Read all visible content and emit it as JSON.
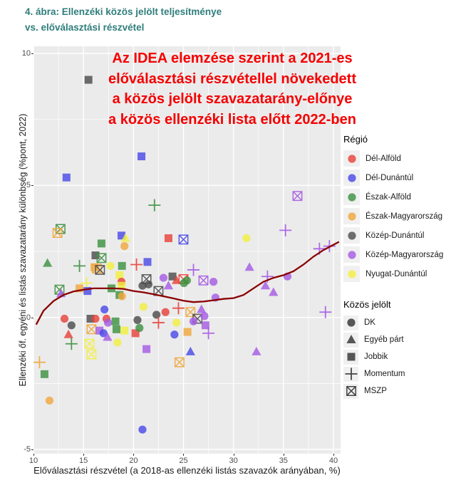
{
  "header": {
    "title_line1": "4. ábra: Ellenzéki közös jelölt teljesítménye",
    "title_line2": "vs. előválasztási részvétel",
    "title_color": "#2E7D7B"
  },
  "annotation": {
    "color": "#F50000",
    "lines": [
      "Az IDEA elemzése szerint a 2021-es",
      "előválasztási részvétellel növekedett",
      "a közös jelölt szavazatarány-előnye",
      "a közös ellenzéki lista előtt 2022-ben"
    ]
  },
  "chart_data": {
    "type": "scatter",
    "title": "",
    "xlabel": "Előválasztási részvétel (a 2018-as ellenzéki listás szavazók arányában, %)",
    "ylabel": "Ellenzéki őf. egyéni és listás szavazatarány különbség (%pont, 2022)",
    "xlim": [
      10,
      40.7
    ],
    "ylim": [
      -5.2,
      10.3
    ],
    "xticks": [
      10,
      15,
      20,
      25,
      30,
      35,
      40
    ],
    "yticks": [
      -5,
      0,
      5,
      10
    ],
    "xticks_minor": [
      12.5,
      17.5,
      22.5,
      27.5,
      32.5,
      37.5
    ],
    "yticks_minor": [
      -2.5,
      2.5,
      7.5
    ],
    "grid": "on",
    "panel_bg": "#EBEBEB",
    "grid_color": "#FFFFFF",
    "legend_position": "right",
    "legend_region": {
      "title": "Régió",
      "items": [
        {
          "label": "Dél-Alföld",
          "color": "#E8423A"
        },
        {
          "label": "Dél-Dunántúl",
          "color": "#4B4BE8"
        },
        {
          "label": "Észak-Alföld",
          "color": "#3E9142"
        },
        {
          "label": "Észak-Magyarország",
          "color": "#F0A73E"
        },
        {
          "label": "Közép-Dunántúl",
          "color": "#4D4D4D"
        },
        {
          "label": "Közép-Magyarország",
          "color": "#A55CE3"
        },
        {
          "label": "Nyugat-Dunántúl",
          "color": "#F2EF41"
        }
      ]
    },
    "legend_shape": {
      "title": "Közös jelölt",
      "glyph_color": "#333333",
      "items": [
        {
          "label": "DK",
          "shape": "circle"
        },
        {
          "label": "Egyéb párt",
          "shape": "triangle"
        },
        {
          "label": "Jobbik",
          "shape": "square"
        },
        {
          "label": "Momentum",
          "shape": "plus"
        },
        {
          "label": "MSZP",
          "shape": "square-x"
        }
      ]
    },
    "trend": {
      "color": "#8B0000",
      "points": [
        [
          10.3,
          -0.25
        ],
        [
          11,
          0.25
        ],
        [
          12,
          0.62
        ],
        [
          13,
          0.85
        ],
        [
          14,
          0.98
        ],
        [
          15,
          1.05
        ],
        [
          16,
          1.1
        ],
        [
          17,
          1.1
        ],
        [
          18,
          1.1
        ],
        [
          19,
          1.08
        ],
        [
          20,
          1.0
        ],
        [
          21,
          0.95
        ],
        [
          22,
          0.88
        ],
        [
          23,
          0.8
        ],
        [
          24,
          0.72
        ],
        [
          25,
          0.63
        ],
        [
          26,
          0.58
        ],
        [
          27,
          0.6
        ],
        [
          28,
          0.65
        ],
        [
          29,
          0.7
        ],
        [
          30,
          0.73
        ],
        [
          31,
          0.85
        ],
        [
          32,
          1.1
        ],
        [
          33,
          1.35
        ],
        [
          34,
          1.5
        ],
        [
          35,
          1.6
        ],
        [
          36,
          1.75
        ],
        [
          37,
          2.0
        ],
        [
          38,
          2.3
        ],
        [
          39,
          2.55
        ],
        [
          40,
          2.75
        ],
        [
          40.5,
          2.85
        ]
      ]
    },
    "points": [
      {
        "x": 15.5,
        "y": 9.0,
        "region": "Közép-Dunántúl",
        "party": "Jobbik"
      },
      {
        "x": 20.8,
        "y": 6.1,
        "region": "Dél-Dunántúl",
        "party": "Jobbik"
      },
      {
        "x": 13.3,
        "y": 5.3,
        "region": "Dél-Dunántúl",
        "party": "Jobbik"
      },
      {
        "x": 36.4,
        "y": 4.6,
        "region": "Közép-Magyarország",
        "party": "MSZP"
      },
      {
        "x": 22.1,
        "y": 4.25,
        "region": "Észak-Alföld",
        "party": "Momentum"
      },
      {
        "x": 35.2,
        "y": 3.3,
        "region": "Közép-Magyarország",
        "party": "Momentum"
      },
      {
        "x": 12.7,
        "y": 3.35,
        "region": "Észak-Alföld",
        "party": "MSZP"
      },
      {
        "x": 12.4,
        "y": 3.2,
        "region": "Észak-Magyarország",
        "party": "MSZP"
      },
      {
        "x": 18.8,
        "y": 3.1,
        "region": "Dél-Dunántúl",
        "party": "Jobbik"
      },
      {
        "x": 19.2,
        "y": 3.0,
        "region": "Nyugat-Dunántúl",
        "party": "Egyéb párt"
      },
      {
        "x": 31.3,
        "y": 3.0,
        "region": "Nyugat-Dunántúl",
        "party": "DK"
      },
      {
        "x": 23.5,
        "y": 3.0,
        "region": "Dél-Alföld",
        "party": "Jobbik"
      },
      {
        "x": 25.0,
        "y": 2.95,
        "region": "Dél-Dunántúl",
        "party": "MSZP"
      },
      {
        "x": 39.6,
        "y": 2.7,
        "region": "Közép-Magyarország",
        "party": "Momentum"
      },
      {
        "x": 38.6,
        "y": 2.6,
        "region": "Közép-Magyarország",
        "party": "Momentum"
      },
      {
        "x": 16.8,
        "y": 2.8,
        "region": "Észak-Alföld",
        "party": "Jobbik"
      },
      {
        "x": 19.1,
        "y": 2.7,
        "region": "Észak-Magyarország",
        "party": "DK"
      },
      {
        "x": 16.2,
        "y": 2.35,
        "region": "Közép-Dunántúl",
        "party": "Jobbik"
      },
      {
        "x": 16.8,
        "y": 2.25,
        "region": "Észak-Alföld",
        "party": "MSZP"
      },
      {
        "x": 11.4,
        "y": 2.05,
        "region": "Észak-Alföld",
        "party": "Egyéb párt"
      },
      {
        "x": 14.6,
        "y": 1.95,
        "region": "Észak-Alföld",
        "party": "Momentum"
      },
      {
        "x": 16.1,
        "y": 1.9,
        "region": "Észak-Magyarország",
        "party": "Jobbik"
      },
      {
        "x": 16.35,
        "y": 1.85,
        "region": "Észak-Magyarország",
        "party": "MSZP"
      },
      {
        "x": 16.65,
        "y": 1.8,
        "region": "Közép-Dunántúl",
        "party": "MSZP"
      },
      {
        "x": 17.7,
        "y": 1.95,
        "region": "Nyugat-Dunántúl",
        "party": "DK"
      },
      {
        "x": 18.85,
        "y": 1.95,
        "region": "Észak-Alföld",
        "party": "Jobbik"
      },
      {
        "x": 20.3,
        "y": 2.0,
        "region": "Dél-Alföld",
        "party": "Momentum"
      },
      {
        "x": 18.6,
        "y": 1.6,
        "region": "Nyugat-Dunántúl",
        "party": "Jobbik"
      },
      {
        "x": 18.8,
        "y": 1.35,
        "region": "Dél-Alföld",
        "party": "DK"
      },
      {
        "x": 21.4,
        "y": 2.1,
        "region": "Dél-Dunántúl",
        "party": "Jobbik"
      },
      {
        "x": 31.6,
        "y": 1.9,
        "region": "Közép-Magyarország",
        "party": "Egyéb párt"
      },
      {
        "x": 33.4,
        "y": 1.55,
        "region": "Közép-Magyarország",
        "party": "Momentum"
      },
      {
        "x": 35.4,
        "y": 1.55,
        "region": "Közép-Magyarország",
        "party": "DK"
      },
      {
        "x": 26.0,
        "y": 1.8,
        "region": "Közép-Magyarország",
        "party": "Momentum"
      },
      {
        "x": 21.3,
        "y": 1.45,
        "region": "Közép-Dunántúl",
        "party": "MSZP"
      },
      {
        "x": 21.5,
        "y": 1.25,
        "region": "Közép-Dunántúl",
        "party": "DK"
      },
      {
        "x": 20.9,
        "y": 1.2,
        "region": "Közép-Dunántúl",
        "party": "DK"
      },
      {
        "x": 23.0,
        "y": 1.5,
        "region": "Közép-Magyarország",
        "party": "DK"
      },
      {
        "x": 23.9,
        "y": 1.55,
        "region": "Közép-Dunántúl",
        "party": "Jobbik"
      },
      {
        "x": 23.5,
        "y": 1.2,
        "region": "Közép-Magyarország",
        "party": "Egyéb párt"
      },
      {
        "x": 24.3,
        "y": 1.4,
        "region": "Dél-Alföld",
        "party": "Egyéb párt"
      },
      {
        "x": 25.0,
        "y": 1.45,
        "region": "Dél-Alföld",
        "party": "MSZP"
      },
      {
        "x": 25.05,
        "y": 1.3,
        "region": "Észak-Alföld",
        "party": "DK"
      },
      {
        "x": 25.35,
        "y": 1.4,
        "region": "Észak-Alföld",
        "party": "DK"
      },
      {
        "x": 22.5,
        "y": 1.0,
        "region": "Közép-Dunántúl",
        "party": "MSZP"
      },
      {
        "x": 27.0,
        "y": 1.4,
        "region": "Közép-Magyarország",
        "party": "MSZP"
      },
      {
        "x": 28.0,
        "y": 1.35,
        "region": "Közép-Magyarország",
        "party": "DK"
      },
      {
        "x": 33.2,
        "y": 1.2,
        "region": "Közép-Magyarország",
        "party": "Egyéb párt"
      },
      {
        "x": 34.0,
        "y": 0.95,
        "region": "Közép-Magyarország",
        "party": "Egyéb párt"
      },
      {
        "x": 12.6,
        "y": 1.05,
        "region": "Észak-Alföld",
        "party": "MSZP"
      },
      {
        "x": 12.75,
        "y": 0.9,
        "region": "Közép-Magyarország",
        "party": "Egyéb párt"
      },
      {
        "x": 14.6,
        "y": 1.1,
        "region": "Észak-Magyarország",
        "party": "Jobbik"
      },
      {
        "x": 15.3,
        "y": 1.3,
        "region": "Nyugat-Dunántúl",
        "party": "Momentum"
      },
      {
        "x": 15.4,
        "y": 1.0,
        "region": "Dél-Dunántúl",
        "party": "Jobbik"
      },
      {
        "x": 17.8,
        "y": 1.1,
        "region": "Észak-Alföld",
        "party": "Jobbik"
      },
      {
        "x": 18.8,
        "y": 1.2,
        "region": "Nyugat-Dunántúl",
        "party": "Jobbik"
      },
      {
        "x": 18.6,
        "y": 0.85,
        "region": "Észak-Alföld",
        "party": "Jobbik"
      },
      {
        "x": 18.85,
        "y": 0.8,
        "region": "Észak-Magyarország",
        "party": "DK"
      },
      {
        "x": 13.1,
        "y": -0.05,
        "region": "Dél-Alföld",
        "party": "DK"
      },
      {
        "x": 13.8,
        "y": -0.3,
        "region": "Közép-Dunántúl",
        "party": "DK"
      },
      {
        "x": 17.1,
        "y": 0.3,
        "region": "Dél-Dunántúl",
        "party": "DK"
      },
      {
        "x": 15.7,
        "y": -0.05,
        "region": "Közép-Dunántúl",
        "party": "Jobbik"
      },
      {
        "x": 16.2,
        "y": -0.05,
        "region": "Dél-Alföld",
        "party": "DK"
      },
      {
        "x": 17.3,
        "y": -0.05,
        "region": "Dél-Alföld",
        "party": "DK"
      },
      {
        "x": 17.45,
        "y": -0.2,
        "region": "Közép-Magyarország",
        "party": "DK"
      },
      {
        "x": 15.8,
        "y": -0.45,
        "region": "Észak-Magyarország",
        "party": "MSZP"
      },
      {
        "x": 18.2,
        "y": -0.15,
        "region": "Észak-Alföld",
        "party": "Jobbik"
      },
      {
        "x": 18.3,
        "y": -0.45,
        "region": "Észak-Alföld",
        "party": "Jobbik"
      },
      {
        "x": 16.6,
        "y": -0.5,
        "region": "Közép-Magyarország",
        "party": "Jobbik"
      },
      {
        "x": 17.0,
        "y": -0.6,
        "region": "Dél-Dunántúl",
        "party": "DK"
      },
      {
        "x": 19.1,
        "y": -0.5,
        "region": "Nyugat-Dunántúl",
        "party": "Jobbik"
      },
      {
        "x": 20.4,
        "y": -0.1,
        "region": "Közép-Dunántúl",
        "party": "DK"
      },
      {
        "x": 13.5,
        "y": -0.65,
        "region": "Dél-Alföld",
        "party": "Egyéb párt"
      },
      {
        "x": 17.4,
        "y": -0.75,
        "region": "Közép-Magyarország",
        "party": "Egyéb párt"
      },
      {
        "x": 13.8,
        "y": -1.0,
        "region": "Észak-Alföld",
        "party": "Momentum"
      },
      {
        "x": 18.4,
        "y": -0.95,
        "region": "Nyugat-Dunántúl",
        "party": "DK"
      },
      {
        "x": 20.2,
        "y": -0.6,
        "region": "Dél-Alföld",
        "party": "Jobbik"
      },
      {
        "x": 15.6,
        "y": -1.0,
        "region": "Nyugat-Dunántúl",
        "party": "MSZP"
      },
      {
        "x": 15.8,
        "y": -1.4,
        "region": "Nyugat-Dunántúl",
        "party": "MSZP"
      },
      {
        "x": 10.6,
        "y": -1.7,
        "region": "Észak-Magyarország",
        "party": "Momentum"
      },
      {
        "x": 11.1,
        "y": -2.15,
        "region": "Észak-Alföld",
        "party": "Jobbik"
      },
      {
        "x": 28.2,
        "y": 0.75,
        "region": "Közép-Magyarország",
        "party": "DK"
      },
      {
        "x": 21.0,
        "y": 0.4,
        "region": "Nyugat-Dunántúl",
        "party": "DK"
      },
      {
        "x": 24.5,
        "y": 0.35,
        "region": "Dél-Alföld",
        "party": "Momentum"
      },
      {
        "x": 22.3,
        "y": 0.1,
        "region": "Közép-Dunántúl",
        "party": "DK"
      },
      {
        "x": 23.2,
        "y": 0.2,
        "region": "Dél-Alföld",
        "party": "DK"
      },
      {
        "x": 22.5,
        "y": -0.2,
        "region": "Dél-Alföld",
        "party": "Momentum"
      },
      {
        "x": 20.6,
        "y": -0.4,
        "region": "Észak-Alföld",
        "party": "DK"
      },
      {
        "x": 25.7,
        "y": 0.2,
        "region": "Észak-Magyarország",
        "party": "MSZP"
      },
      {
        "x": 26.4,
        "y": -0.05,
        "region": "Közép-Dunántúl",
        "party": "MSZP"
      },
      {
        "x": 26.8,
        "y": 0.3,
        "region": "Közép-Magyarország",
        "party": "Egyéb párt"
      },
      {
        "x": 27.1,
        "y": 0.05,
        "region": "Közép-Magyarország",
        "party": "DK"
      },
      {
        "x": 26.0,
        "y": -0.15,
        "region": "Közép-Magyarország",
        "party": "DK"
      },
      {
        "x": 24.3,
        "y": -0.2,
        "region": "Nyugat-Dunántúl",
        "party": "DK"
      },
      {
        "x": 27.2,
        "y": -0.3,
        "region": "Közép-Magyarország",
        "party": "Jobbik"
      },
      {
        "x": 24.1,
        "y": -0.65,
        "region": "Dél-Dunántúl",
        "party": "DK"
      },
      {
        "x": 25.4,
        "y": -0.55,
        "region": "Észak-Magyarország",
        "party": "Jobbik"
      },
      {
        "x": 27.5,
        "y": -0.6,
        "region": "Közép-Magyarország",
        "party": "Momentum"
      },
      {
        "x": 21.3,
        "y": -1.2,
        "region": "Közép-Magyarország",
        "party": "Jobbik"
      },
      {
        "x": 25.7,
        "y": -1.3,
        "region": "Dél-Dunántúl",
        "party": "Egyéb párt"
      },
      {
        "x": 24.6,
        "y": -1.7,
        "region": "Észak-Magyarország",
        "party": "MSZP"
      },
      {
        "x": 39.2,
        "y": 0.2,
        "region": "Közép-Magyarország",
        "party": "Momentum"
      },
      {
        "x": 32.3,
        "y": -1.3,
        "region": "Közép-Magyarország",
        "party": "Egyéb párt"
      },
      {
        "x": 11.6,
        "y": -3.15,
        "region": "Észak-Magyarország",
        "party": "DK"
      },
      {
        "x": 20.9,
        "y": -4.25,
        "region": "Dél-Dunántúl",
        "party": "DK"
      }
    ]
  }
}
